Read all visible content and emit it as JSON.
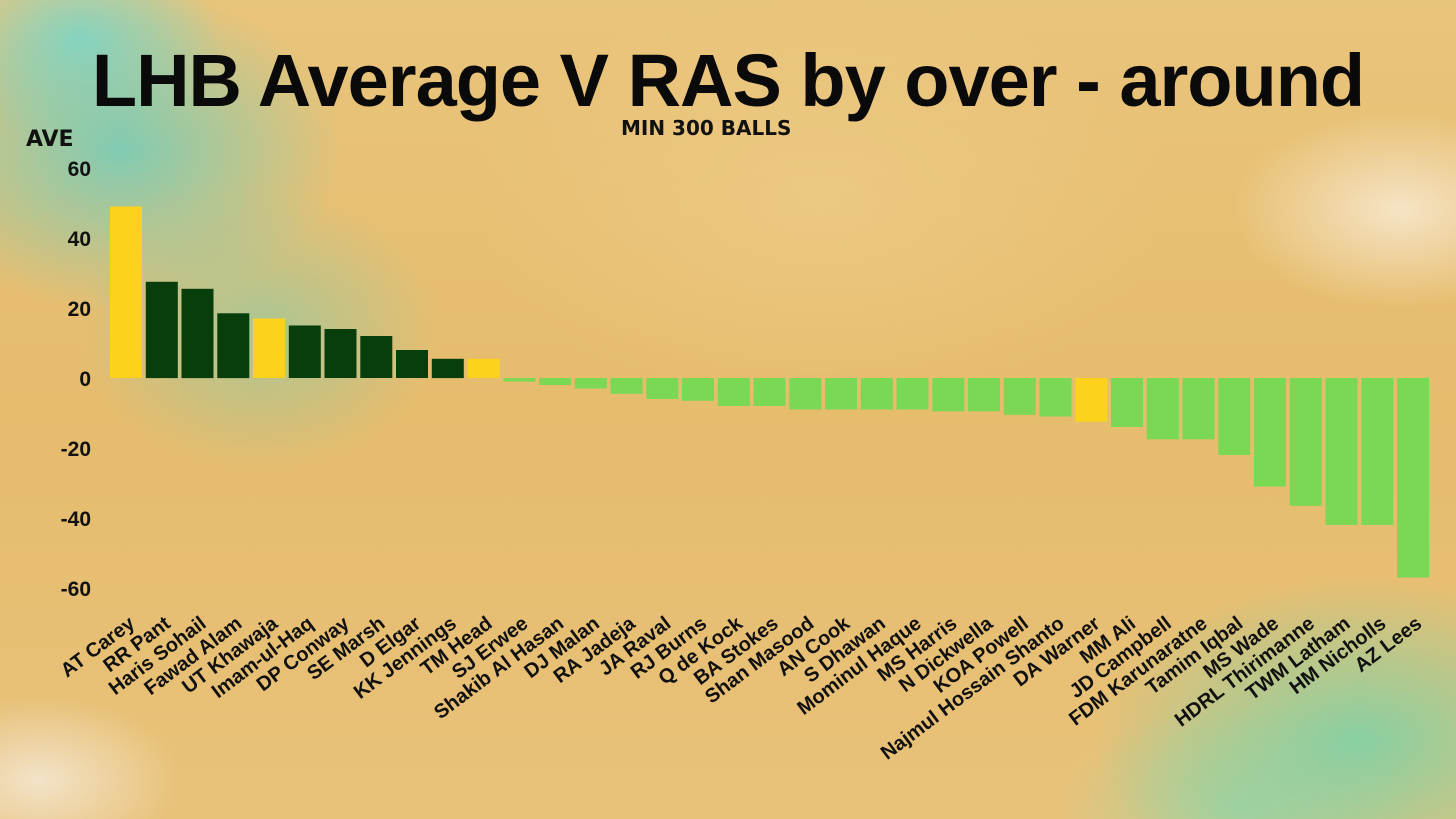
{
  "chart_data": {
    "type": "bar",
    "title": "LHB Average V RAS by over - around",
    "subtitle": "MIN 300 BALLS",
    "ylabel": "AVE",
    "ylim": [
      -60,
      60
    ],
    "yticks": [
      60,
      40,
      20,
      0,
      -20,
      -40,
      -60
    ],
    "colors": {
      "highlight": "#fcd21d",
      "positive": "#083d0c",
      "negative": "#7ad855"
    },
    "bars": [
      {
        "name": "AT Carey",
        "value": 49,
        "highlight": true
      },
      {
        "name": "RR Pant",
        "value": 27.5,
        "highlight": false
      },
      {
        "name": "Haris Sohail",
        "value": 25.5,
        "highlight": false
      },
      {
        "name": "Fawad Alam",
        "value": 18.5,
        "highlight": false
      },
      {
        "name": "UT Khawaja",
        "value": 17,
        "highlight": true
      },
      {
        "name": "Imam-ul-Haq",
        "value": 15,
        "highlight": false
      },
      {
        "name": "DP Conway",
        "value": 14,
        "highlight": false
      },
      {
        "name": "SE Marsh",
        "value": 12,
        "highlight": false
      },
      {
        "name": "D Elgar",
        "value": 8,
        "highlight": false
      },
      {
        "name": "KK Jennings",
        "value": 5.5,
        "highlight": false
      },
      {
        "name": "TM Head",
        "value": 5.5,
        "highlight": true
      },
      {
        "name": "SJ Erwee",
        "value": -1,
        "highlight": false
      },
      {
        "name": "Shakib Al Hasan",
        "value": -2,
        "highlight": false
      },
      {
        "name": "DJ Malan",
        "value": -3,
        "highlight": false
      },
      {
        "name": "RA Jadeja",
        "value": -4.5,
        "highlight": false
      },
      {
        "name": "JA Raval",
        "value": -6,
        "highlight": false
      },
      {
        "name": "RJ Burns",
        "value": -6.5,
        "highlight": false
      },
      {
        "name": "Q de Kock",
        "value": -8,
        "highlight": false
      },
      {
        "name": "BA Stokes",
        "value": -8,
        "highlight": false
      },
      {
        "name": "Shan Masood",
        "value": -9,
        "highlight": false
      },
      {
        "name": "AN Cook",
        "value": -9,
        "highlight": false
      },
      {
        "name": "S Dhawan",
        "value": -9,
        "highlight": false
      },
      {
        "name": "Mominul Haque",
        "value": -9,
        "highlight": false
      },
      {
        "name": "MS Harris",
        "value": -9.5,
        "highlight": false
      },
      {
        "name": "N Dickwella",
        "value": -9.5,
        "highlight": false
      },
      {
        "name": "KOA Powell",
        "value": -10.5,
        "highlight": false
      },
      {
        "name": "Najmul Hossain Shanto",
        "value": -11,
        "highlight": false
      },
      {
        "name": "DA Warner",
        "value": -12.5,
        "highlight": true
      },
      {
        "name": "MM Ali",
        "value": -14,
        "highlight": false
      },
      {
        "name": "JD Campbell",
        "value": -17.5,
        "highlight": false
      },
      {
        "name": "FDM Karunaratne",
        "value": -17.5,
        "highlight": false
      },
      {
        "name": "Tamim Iqbal",
        "value": -22,
        "highlight": false
      },
      {
        "name": "MS Wade",
        "value": -31,
        "highlight": false
      },
      {
        "name": "HDRL Thirimanne",
        "value": -36.5,
        "highlight": false
      },
      {
        "name": "TWM Latham",
        "value": -42,
        "highlight": false
      },
      {
        "name": "HM Nicholls",
        "value": -42,
        "highlight": false
      },
      {
        "name": "AZ Lees",
        "value": -57,
        "highlight": false
      }
    ]
  }
}
